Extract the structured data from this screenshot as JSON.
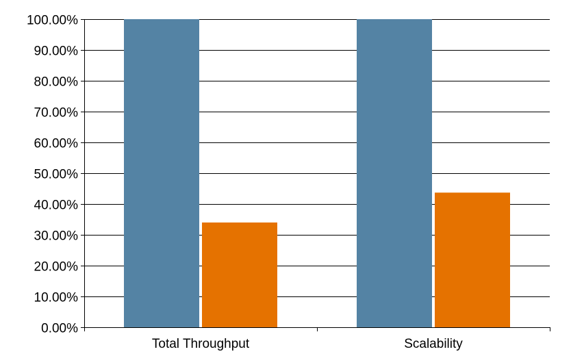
{
  "chart_data": {
    "type": "bar",
    "categories": [
      "Total Throughput",
      "Scalability"
    ],
    "series": [
      {
        "values": [
          100.0,
          100.0
        ],
        "color": "#5483a4"
      },
      {
        "values": [
          34.0,
          43.7
        ],
        "color": "#e57200"
      }
    ],
    "y_tick_labels": [
      "0.00%",
      "10.00%",
      "20.00%",
      "30.00%",
      "40.00%",
      "50.00%",
      "60.00%",
      "70.00%",
      "80.00%",
      "90.00%",
      "100.00%"
    ],
    "ylim": [
      0,
      100
    ],
    "y_tick_step": 10,
    "grid": "horizontal",
    "legend": "none",
    "title": "",
    "xlabel": "",
    "ylabel": ""
  }
}
